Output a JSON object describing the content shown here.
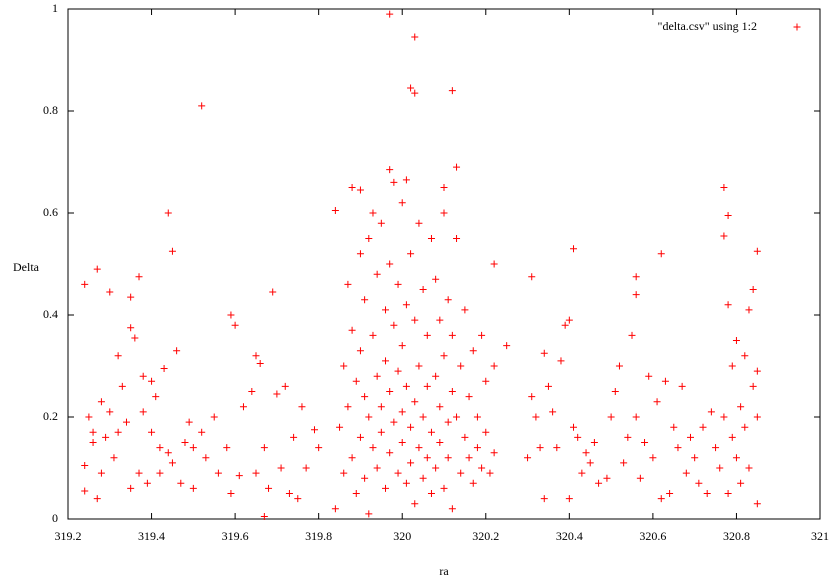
{
  "chart_data": {
    "type": "scatter",
    "x_label": "ra",
    "y_label": "Delta",
    "xlim": [
      319.2,
      321
    ],
    "ylim": [
      0,
      1
    ],
    "xticks": [
      319.2,
      319.4,
      319.6,
      319.8,
      320,
      320.2,
      320.4,
      320.6,
      320.8,
      321
    ],
    "yticks": [
      0,
      0.2,
      0.4,
      0.6,
      0.8,
      1
    ],
    "legend": "top-right",
    "series": [
      {
        "name": "\"delta.csv\" using 1:2",
        "color": "#ff0000",
        "x": [
          319.97,
          320.03,
          320.02,
          320.03,
          320.12,
          319.52,
          319.44,
          319.84,
          320.77,
          320.78,
          320.77,
          320.85,
          319.24,
          319.27,
          319.45,
          320.41,
          320.62,
          320.56,
          320.31,
          320.22,
          319.69,
          319.59,
          320.13,
          319.97,
          319.88,
          319.9,
          319.93,
          320.1,
          320.01,
          319.24,
          319.24,
          319.25,
          319.26,
          319.26,
          319.27,
          319.28,
          319.28,
          319.29,
          319.3,
          319.3,
          319.31,
          319.32,
          319.32,
          319.33,
          319.34,
          319.35,
          319.35,
          319.35,
          319.36,
          319.37,
          319.37,
          319.38,
          319.38,
          319.39,
          319.4,
          319.4,
          319.41,
          319.42,
          319.42,
          319.43,
          319.44,
          319.45,
          319.46,
          319.47,
          319.48,
          319.49,
          319.5,
          319.5,
          319.52,
          319.53,
          319.55,
          319.56,
          319.58,
          319.59,
          319.6,
          319.61,
          319.62,
          319.64,
          319.65,
          319.65,
          319.66,
          319.67,
          319.67,
          319.68,
          319.7,
          319.71,
          319.72,
          319.73,
          319.74,
          319.75,
          319.76,
          319.77,
          319.79,
          319.8,
          319.84,
          319.85,
          319.86,
          319.86,
          319.87,
          319.87,
          319.88,
          319.88,
          319.89,
          319.89,
          319.9,
          319.9,
          319.9,
          319.91,
          319.91,
          319.91,
          319.92,
          319.92,
          319.92,
          319.93,
          319.93,
          319.94,
          319.94,
          319.94,
          319.95,
          319.95,
          319.95,
          319.96,
          319.96,
          319.96,
          319.97,
          319.97,
          319.97,
          319.98,
          319.98,
          319.98,
          319.99,
          319.99,
          319.99,
          320,
          320,
          320,
          320,
          320.01,
          320.01,
          320.01,
          320.02,
          320.02,
          320.02,
          320.03,
          320.03,
          320.03,
          320.04,
          320.04,
          320.04,
          320.05,
          320.05,
          320.05,
          320.06,
          320.06,
          320.06,
          320.07,
          320.07,
          320.07,
          320.08,
          320.08,
          320.08,
          320.09,
          320.09,
          320.09,
          320.1,
          320.1,
          320.1,
          320.11,
          320.11,
          320.11,
          320.12,
          320.12,
          320.12,
          320.13,
          320.13,
          320.14,
          320.14,
          320.15,
          320.15,
          320.16,
          320.16,
          320.17,
          320.17,
          320.18,
          320.18,
          320.19,
          320.19,
          320.2,
          320.2,
          320.21,
          320.22,
          320.22,
          320.25,
          320.3,
          320.31,
          320.32,
          320.33,
          320.34,
          320.34,
          320.35,
          320.36,
          320.37,
          320.38,
          320.39,
          320.4,
          320.4,
          320.41,
          320.42,
          320.43,
          320.44,
          320.45,
          320.46,
          320.47,
          320.49,
          320.5,
          320.51,
          320.52,
          320.53,
          320.54,
          320.55,
          320.56,
          320.56,
          320.57,
          320.58,
          320.59,
          320.6,
          320.61,
          320.62,
          320.63,
          320.64,
          320.65,
          320.66,
          320.67,
          320.68,
          320.69,
          320.7,
          320.71,
          320.72,
          320.73,
          320.74,
          320.75,
          320.76,
          320.77,
          320.78,
          320.78,
          320.79,
          320.79,
          320.8,
          320.8,
          320.81,
          320.81,
          320.82,
          320.82,
          320.83,
          320.83,
          320.84,
          320.84,
          320.85,
          320.85,
          320.85
        ],
        "values": [
          0.99,
          0.945,
          0.845,
          0.835,
          0.84,
          0.81,
          0.6,
          0.605,
          0.65,
          0.595,
          0.555,
          0.525,
          0.46,
          0.49,
          0.525,
          0.53,
          0.52,
          0.475,
          0.475,
          0.5,
          0.445,
          0.4,
          0.69,
          0.685,
          0.65,
          0.645,
          0.6,
          0.65,
          0.665,
          0.105,
          0.055,
          0.2,
          0.17,
          0.15,
          0.04,
          0.09,
          0.23,
          0.16,
          0.445,
          0.21,
          0.12,
          0.32,
          0.17,
          0.26,
          0.19,
          0.375,
          0.435,
          0.06,
          0.355,
          0.475,
          0.09,
          0.21,
          0.28,
          0.07,
          0.27,
          0.17,
          0.24,
          0.14,
          0.09,
          0.295,
          0.13,
          0.11,
          0.33,
          0.07,
          0.15,
          0.19,
          0.06,
          0.14,
          0.17,
          0.12,
          0.2,
          0.09,
          0.14,
          0.05,
          0.38,
          0.085,
          0.22,
          0.25,
          0.32,
          0.09,
          0.305,
          0.005,
          0.14,
          0.06,
          0.245,
          0.1,
          0.26,
          0.05,
          0.16,
          0.04,
          0.22,
          0.1,
          0.175,
          0.14,
          0.02,
          0.18,
          0.3,
          0.09,
          0.46,
          0.22,
          0.37,
          0.12,
          0.27,
          0.05,
          0.52,
          0.33,
          0.16,
          0.43,
          0.24,
          0.08,
          0.55,
          0.2,
          0.01,
          0.36,
          0.14,
          0.48,
          0.28,
          0.1,
          0.58,
          0.22,
          0.17,
          0.41,
          0.31,
          0.06,
          0.5,
          0.25,
          0.13,
          0.38,
          0.19,
          0.66,
          0.46,
          0.29,
          0.09,
          0.62,
          0.34,
          0.21,
          0.15,
          0.42,
          0.26,
          0.07,
          0.52,
          0.18,
          0.11,
          0.39,
          0.23,
          0.03,
          0.58,
          0.3,
          0.14,
          0.45,
          0.2,
          0.08,
          0.36,
          0.26,
          0.12,
          0.55,
          0.17,
          0.05,
          0.47,
          0.28,
          0.1,
          0.39,
          0.22,
          0.15,
          0.6,
          0.32,
          0.06,
          0.43,
          0.19,
          0.12,
          0.36,
          0.25,
          0.02,
          0.55,
          0.2,
          0.3,
          0.09,
          0.41,
          0.16,
          0.24,
          0.12,
          0.33,
          0.07,
          0.2,
          0.14,
          0.36,
          0.1,
          0.27,
          0.17,
          0.09,
          0.3,
          0.13,
          0.34,
          0.12,
          0.24,
          0.2,
          0.14,
          0.04,
          0.325,
          0.26,
          0.21,
          0.14,
          0.31,
          0.38,
          0.04,
          0.39,
          0.18,
          0.16,
          0.09,
          0.13,
          0.11,
          0.15,
          0.07,
          0.08,
          0.2,
          0.25,
          0.3,
          0.11,
          0.16,
          0.36,
          0.44,
          0.2,
          0.08,
          0.15,
          0.28,
          0.12,
          0.23,
          0.04,
          0.27,
          0.05,
          0.18,
          0.14,
          0.26,
          0.09,
          0.16,
          0.12,
          0.07,
          0.18,
          0.05,
          0.21,
          0.14,
          0.1,
          0.2,
          0.05,
          0.42,
          0.16,
          0.3,
          0.12,
          0.35,
          0.22,
          0.07,
          0.32,
          0.18,
          0.41,
          0.1,
          0.26,
          0.45,
          0.2,
          0.03,
          0.29
        ]
      }
    ]
  }
}
